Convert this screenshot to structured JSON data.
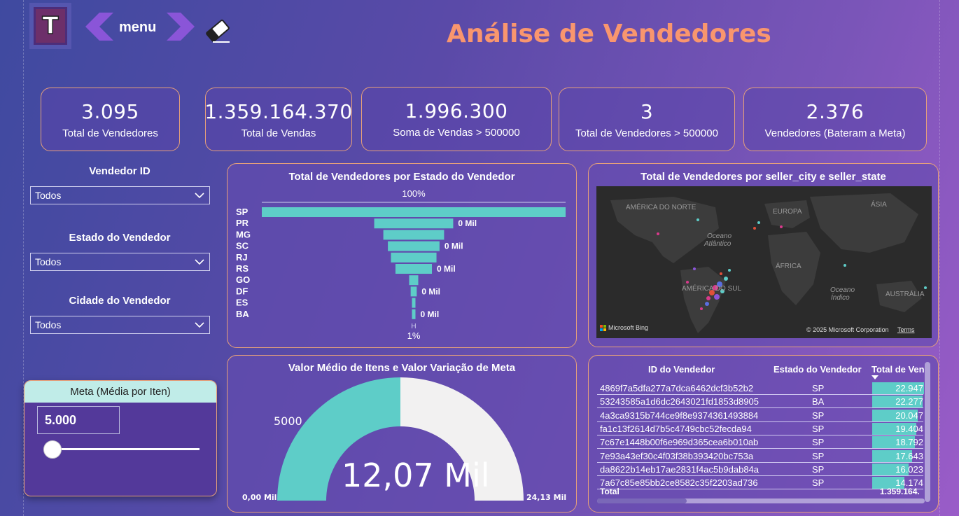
{
  "header": {
    "logo_letter": "T",
    "menu_label": "menu",
    "title": "Análise de Vendedores"
  },
  "kpis": [
    {
      "value": "3.095",
      "label": "Total de Vendedores"
    },
    {
      "value": "1.359.164.370",
      "label": "Total de Vendas"
    },
    {
      "value": "1.996.300",
      "label": "Soma de Vendas > 500000"
    },
    {
      "value": "3",
      "label": "Total de Vendedores > 500000"
    },
    {
      "value": "2.376",
      "label": "Vendedores (Bateram a Meta)"
    }
  ],
  "filters": [
    {
      "label": "Vendedor ID",
      "value": "Todos"
    },
    {
      "label": "Estado do Vendedor",
      "value": "Todos"
    },
    {
      "label": "Cidade do Vendedor",
      "value": "Todos"
    }
  ],
  "meta": {
    "title": "Meta (Média por Iten)",
    "value": "5.000"
  },
  "funnel": {
    "title": "Total de Vendedores por Estado do Vendedor",
    "top_pct": "100%",
    "bottom_pct": "1%",
    "bottom_marker": "H"
  },
  "map": {
    "title": "Total de Vendedores por seller_city e seller_state",
    "labels": [
      "AMÉRICA DO NORTE",
      "EUROPA",
      "ÁSIA",
      "Oceano",
      "Atlântico",
      "ÁFRICA",
      "AMÉRICA DO SUL",
      "Oceano",
      "Índico",
      "AUSTRÁLIA"
    ],
    "brand": "Microsoft Bing",
    "copyright": "© 2025 Microsoft Corporation",
    "terms": "Terms"
  },
  "gauge": {
    "title": "Valor Médio de Itens e Valor Variação de Meta",
    "value_text": "12,07 Mil",
    "target_text": "5000",
    "min_text": "0,00 Mil",
    "max_text": "24,13 Mil",
    "fraction": 0.5,
    "colors": {
      "fill": "#5ecdc8",
      "rest": "#f2f1f1"
    }
  },
  "table": {
    "headers": [
      "ID do Vendedor",
      "Estado do Vendedor",
      "Total de Ven"
    ],
    "rows": [
      {
        "id": "4869f7a5dfa277a7dca6462dcf3b52b2",
        "state": "SP",
        "total": "22.947"
      },
      {
        "id": "53243585a1d6dc2643021fd1853d8905",
        "state": "BA",
        "total": "22.277"
      },
      {
        "id": "4a3ca9315b744ce9f8e9374361493884",
        "state": "SP",
        "total": "20.047"
      },
      {
        "id": "fa1c13f2614d7b5c4749cbc52fecda94",
        "state": "SP",
        "total": "19.404"
      },
      {
        "id": "7c67e1448b00f6e969d365cea6b010ab",
        "state": "SP",
        "total": "18.792"
      },
      {
        "id": "7e93a43ef30c4f03f38b393420bc753a",
        "state": "SP",
        "total": "17.643"
      },
      {
        "id": "da8622b14eb17ae2831f4ac5b9dab84a",
        "state": "SP",
        "total": "16.023"
      },
      {
        "id": "7a67c85e85bb2ce8582c35f2203ad736",
        "state": "SP",
        "total": "14.174"
      }
    ],
    "total_label": "Total",
    "total_value": "1.359.164."
  },
  "chart_data": {
    "type": "bar",
    "title": "Total de Vendedores por Estado do Vendedor",
    "categories": [
      "SP",
      "PR",
      "MG",
      "SC",
      "RJ",
      "RS",
      "GO",
      "DF",
      "ES",
      "BA"
    ],
    "values": [
      100,
      26,
      20,
      17,
      15,
      12,
      3,
      2,
      1,
      1
    ],
    "data_labels": [
      "",
      "0 Mil",
      "",
      "0 Mil",
      "",
      "0 Mil",
      "",
      "0 Mil",
      "",
      "0 Mil"
    ],
    "colors": {
      "bar": "#5ecdc8"
    }
  }
}
